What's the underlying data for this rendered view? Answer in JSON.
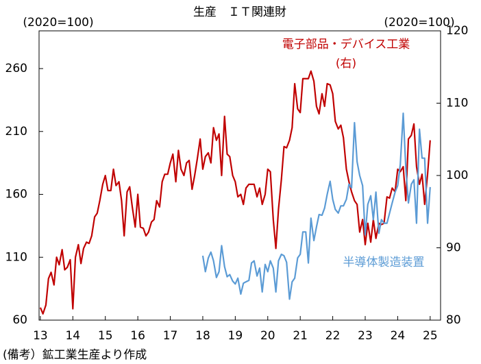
{
  "chart_data": {
    "type": "line",
    "title": "生産　ＩＴ関連財",
    "y_label": "(2020=100)",
    "y2_label": "(2020=100)",
    "annotations": [
      "電子部品・デバイス工業",
      "(右)",
      "半導体製造装置"
    ],
    "note": "(備考）鉱工業生産より作成",
    "xlim": [
      12.96,
      25.32
    ],
    "xticks": [
      13,
      14,
      15,
      16,
      17,
      18,
      19,
      20,
      21,
      22,
      23,
      24,
      25
    ],
    "ylim": [
      60,
      290
    ],
    "yticks": [
      60,
      110,
      160,
      210,
      260
    ],
    "y2lim": [
      80,
      120
    ],
    "y2ticks": [
      80,
      90,
      100,
      110,
      120
    ],
    "series": [
      {
        "name": "電子部品・デバイス工業",
        "color": "#c00000",
        "x": [
          13.0,
          13.08,
          13.17,
          13.25,
          13.33,
          13.42,
          13.5,
          13.58,
          13.67,
          13.75,
          13.83,
          13.92,
          14.0,
          14.08,
          14.17,
          14.25,
          14.33,
          14.42,
          14.5,
          14.58,
          14.67,
          14.75,
          14.83,
          14.92,
          15.0,
          15.08,
          15.17,
          15.25,
          15.33,
          15.42,
          15.5,
          15.58,
          15.67,
          15.75,
          15.83,
          15.92,
          16.0,
          16.08,
          16.17,
          16.25,
          16.33,
          16.42,
          16.5,
          16.58,
          16.67,
          16.75,
          16.83,
          16.92,
          17.0,
          17.08,
          17.17,
          17.25,
          17.33,
          17.42,
          17.5,
          17.58,
          17.67,
          17.75,
          17.83,
          17.92,
          18.0,
          18.08,
          18.17,
          18.25,
          18.33,
          18.42,
          18.5,
          18.58,
          18.67,
          18.75,
          18.83,
          18.92,
          19.0,
          19.08,
          19.17,
          19.25,
          19.33,
          19.42,
          19.5,
          19.58,
          19.67,
          19.75,
          19.83,
          19.92,
          20.0,
          20.08,
          20.17,
          20.25,
          20.33,
          20.42,
          20.5,
          20.58,
          20.67,
          20.75,
          20.83,
          20.92,
          21.0,
          21.08,
          21.17,
          21.25,
          21.33,
          21.42,
          21.5,
          21.58,
          21.67,
          21.75,
          21.83,
          21.92,
          22.0,
          22.08,
          22.17,
          22.25,
          22.33,
          22.42,
          22.5,
          22.58,
          22.67,
          22.75,
          22.83,
          22.92,
          23.0,
          23.08,
          23.17,
          23.25,
          23.33,
          23.42,
          23.5,
          23.58,
          23.67,
          23.75,
          23.83,
          23.92,
          24.0,
          24.08,
          24.17,
          24.25,
          24.33,
          24.42,
          24.5,
          24.58,
          24.67,
          24.75,
          24.83,
          24.92,
          25.0
        ],
        "values": [
          70,
          65,
          72,
          93,
          98,
          88,
          110,
          104,
          116,
          100,
          102,
          108,
          69,
          110,
          120,
          105,
          117,
          122,
          121,
          127,
          142,
          145,
          155,
          168,
          175,
          163,
          163,
          180,
          167,
          170,
          155,
          127,
          162,
          166,
          150,
          134,
          160,
          134,
          133,
          127,
          130,
          138,
          140,
          155,
          150,
          170,
          176,
          176,
          185,
          192,
          170,
          195,
          180,
          175,
          185,
          187,
          164,
          175,
          188,
          204,
          180,
          190,
          193,
          185,
          213,
          203,
          208,
          175,
          222,
          192,
          190,
          175,
          170,
          158,
          160,
          152,
          165,
          168,
          168,
          168,
          158,
          165,
          152,
          160,
          180,
          178,
          140,
          117,
          148,
          172,
          198,
          197,
          203,
          213,
          248,
          228,
          225,
          252,
          252,
          252,
          258,
          250,
          230,
          224,
          240,
          230,
          248,
          247,
          240,
          218,
          212,
          215,
          205,
          180,
          170,
          162,
          155,
          152,
          130,
          140,
          120,
          137,
          122,
          140,
          125,
          137,
          136,
          137,
          158,
          157,
          165,
          162,
          180,
          178,
          182,
          155,
          204,
          207,
          216,
          182,
          168,
          176,
          152,
          176,
          203
        ]
      },
      {
        "name": "半導体製造装置",
        "color": "#5b9bd5",
        "axis": "y2",
        "x": [
          18.0,
          18.08,
          18.17,
          18.25,
          18.33,
          18.42,
          18.5,
          18.58,
          18.67,
          18.75,
          18.83,
          18.92,
          19.0,
          19.08,
          19.17,
          19.25,
          19.33,
          19.42,
          19.5,
          19.58,
          19.67,
          19.75,
          19.83,
          19.92,
          20.0,
          20.08,
          20.17,
          20.25,
          20.33,
          20.42,
          20.5,
          20.58,
          20.67,
          20.75,
          20.83,
          20.92,
          21.0,
          21.08,
          21.17,
          21.25,
          21.33,
          21.42,
          21.5,
          21.58,
          21.67,
          21.75,
          21.83,
          21.92,
          22.0,
          22.08,
          22.17,
          22.25,
          22.33,
          22.42,
          22.5,
          22.58,
          22.67,
          22.75,
          22.83,
          22.92,
          23.0,
          23.08,
          23.17,
          23.25,
          23.33,
          23.42,
          23.5,
          23.58,
          23.67,
          23.75,
          23.83,
          23.92,
          24.0,
          24.08,
          24.17,
          24.25,
          24.33,
          24.42,
          24.5,
          24.58,
          24.67,
          24.75,
          24.83,
          24.92,
          25.0
        ],
        "values": [
          88.9,
          86.7,
          88.6,
          89.4,
          88.2,
          85.9,
          86.7,
          90.3,
          87.4,
          86.0,
          86.3,
          85.4,
          85.0,
          85.8,
          83.6,
          85.1,
          85.3,
          85.5,
          87.9,
          88.2,
          86.1,
          87.2,
          83.9,
          87.7,
          86.7,
          88.2,
          87.2,
          83.9,
          88.2,
          89.1,
          88.9,
          88.0,
          82.9,
          85.3,
          85.8,
          88.6,
          89.1,
          92.2,
          92.2,
          87.9,
          94.1,
          91.0,
          92.9,
          94.6,
          94.5,
          95.5,
          97.4,
          99.2,
          96.7,
          95.3,
          94.8,
          95.8,
          95.8,
          96.7,
          98.8,
          98.3,
          107.3,
          101.9,
          100.0,
          98.6,
          91.8,
          96.0,
          97.2,
          93.9,
          97.7,
          92.0,
          93.9,
          93.4,
          93.4,
          94.8,
          96.2,
          97.7,
          98.6,
          101.5,
          108.6,
          101.0,
          96.2,
          98.8,
          99.4,
          93.4,
          106.4,
          102.4,
          102.4,
          93.4,
          98.4
        ]
      }
    ]
  }
}
